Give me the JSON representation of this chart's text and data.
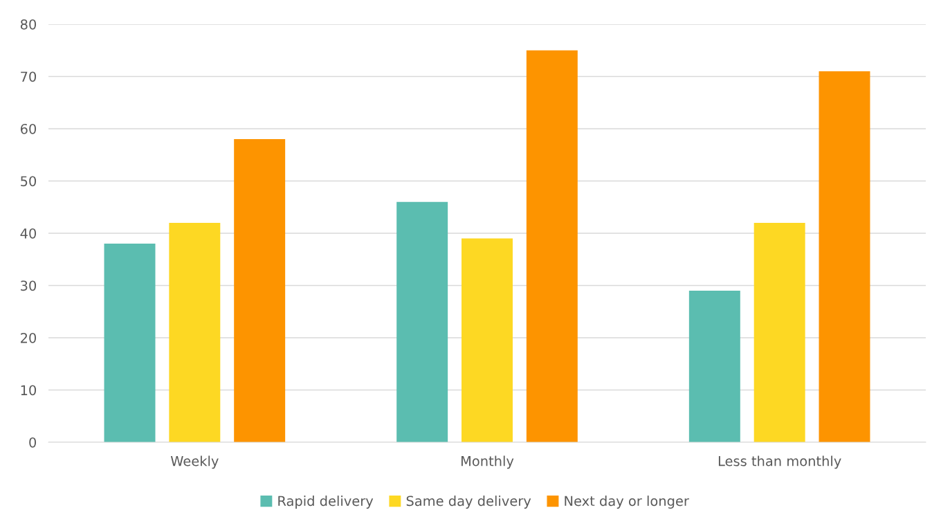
{
  "chart_data": {
    "type": "bar",
    "categories": [
      "Weekly",
      "Monthly",
      "Less than monthly"
    ],
    "series": [
      {
        "name": "Rapid delivery",
        "color": "#5bbdb0",
        "values": [
          38,
          46,
          29
        ]
      },
      {
        "name": "Same day delivery",
        "color": "#fdd823",
        "values": [
          42,
          39,
          42
        ]
      },
      {
        "name": "Next day or longer",
        "color": "#fd9400",
        "values": [
          58,
          75,
          71
        ]
      }
    ],
    "ylim": [
      0,
      80
    ],
    "yticks": [
      0,
      10,
      20,
      30,
      40,
      50,
      60,
      70,
      80
    ],
    "grid": "y",
    "legend": "bottom"
  }
}
